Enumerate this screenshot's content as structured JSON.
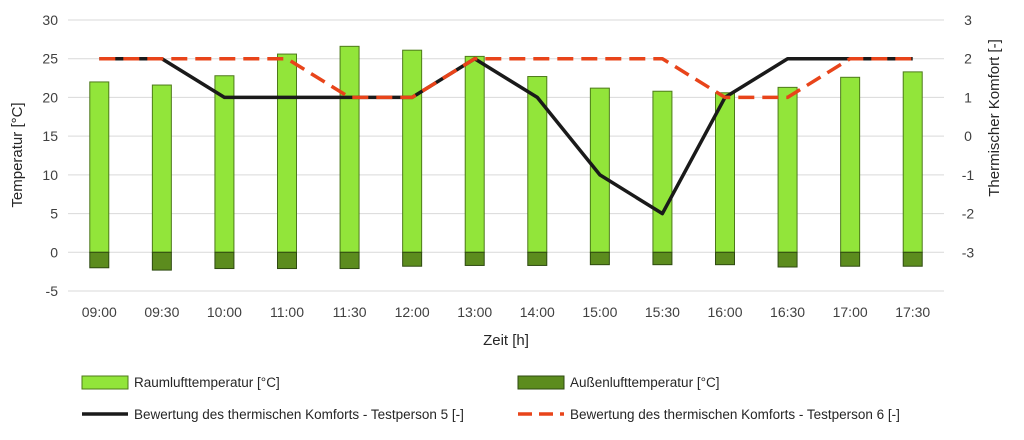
{
  "chart_data": {
    "type": "bar",
    "categories": [
      "09:00",
      "09:30",
      "10:00",
      "11:00",
      "11:30",
      "12:00",
      "13:00",
      "14:00",
      "15:00",
      "15:30",
      "16:00",
      "16:30",
      "17:00",
      "17:30"
    ],
    "xlabel": "Zeit [h]",
    "ylabel": "Temperatur [°C]",
    "ylabel_right": "Thermischer Komfort [-]",
    "ylim": [
      -5,
      30
    ],
    "yticks": [
      -5,
      0,
      5,
      10,
      15,
      20,
      25,
      30
    ],
    "ylim_right": [
      -4,
      3
    ],
    "yticks_right": [
      -3,
      -2,
      -1,
      0,
      1,
      2,
      3
    ],
    "grid": true,
    "legend_position": "bottom",
    "series": [
      {
        "name": "Raumlufttemperatur [°C]",
        "kind": "bar",
        "axis": "left",
        "color": "#92E53A",
        "values": [
          22.0,
          21.6,
          22.8,
          25.6,
          26.6,
          26.1,
          25.3,
          22.7,
          21.2,
          20.8,
          20.6,
          21.3,
          22.6,
          23.3
        ]
      },
      {
        "name": "Außenlufttemperatur [°C]",
        "kind": "bar",
        "axis": "left",
        "color": "#5C8C1E",
        "values": [
          -2.0,
          -2.3,
          -2.1,
          -2.1,
          -2.1,
          -1.8,
          -1.7,
          -1.7,
          -1.6,
          -1.6,
          -1.6,
          -1.9,
          -1.8,
          -1.8
        ]
      },
      {
        "name": "Bewertung des thermischen Komforts - Testperson 5 [-]",
        "kind": "line",
        "axis": "right",
        "color": "#1a1a1a",
        "values": [
          2,
          2,
          1,
          1,
          1,
          1,
          2,
          1,
          -1,
          -2,
          1,
          2,
          2,
          2
        ]
      },
      {
        "name": "Bewertung des thermischen Komforts - Testperson 6 [-]",
        "kind": "dashed-line",
        "axis": "right",
        "color": "#E8441A",
        "values": [
          2,
          2,
          2,
          2,
          1,
          1,
          2,
          2,
          2,
          2,
          1,
          1,
          2,
          2
        ]
      }
    ]
  }
}
